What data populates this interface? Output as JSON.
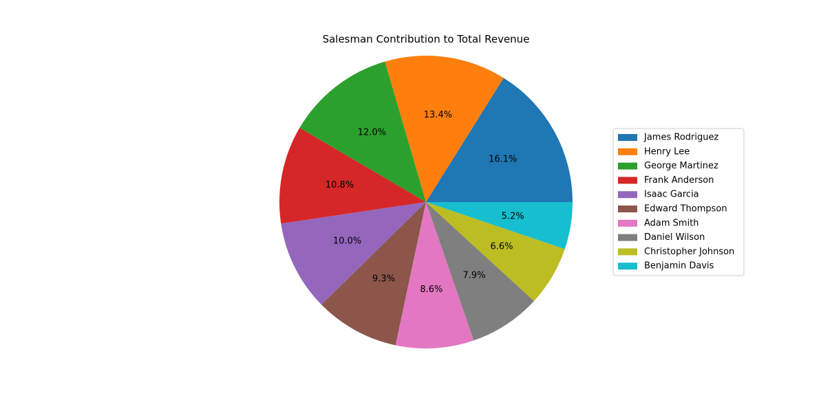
{
  "chart_data": {
    "type": "pie",
    "title": "Salesman Contribution to Total Revenue",
    "legend_position": "right",
    "start_angle_deg": 0,
    "direction": "counterclockwise",
    "slices": [
      {
        "label": "James Rodriguez",
        "value": 16.1,
        "pct_label": "16.1%",
        "color": "#1f77b4"
      },
      {
        "label": "Henry Lee",
        "value": 13.4,
        "pct_label": "13.4%",
        "color": "#ff7f0e"
      },
      {
        "label": "George Martinez",
        "value": 12.0,
        "pct_label": "12.0%",
        "color": "#2ca02c"
      },
      {
        "label": "Frank Anderson",
        "value": 10.8,
        "pct_label": "10.8%",
        "color": "#d62728"
      },
      {
        "label": "Isaac Garcia",
        "value": 10.0,
        "pct_label": "10.0%",
        "color": "#9467bd"
      },
      {
        "label": "Edward Thompson",
        "value": 9.3,
        "pct_label": "9.3%",
        "color": "#8c564b"
      },
      {
        "label": "Adam Smith",
        "value": 8.6,
        "pct_label": "8.6%",
        "color": "#e377c2"
      },
      {
        "label": "Daniel Wilson",
        "value": 7.9,
        "pct_label": "7.9%",
        "color": "#7f7f7f"
      },
      {
        "label": "Christopher Johnson",
        "value": 6.6,
        "pct_label": "6.6%",
        "color": "#bcbd22"
      },
      {
        "label": "Benjamin Davis",
        "value": 5.2,
        "pct_label": "5.2%",
        "color": "#17becf"
      }
    ]
  }
}
